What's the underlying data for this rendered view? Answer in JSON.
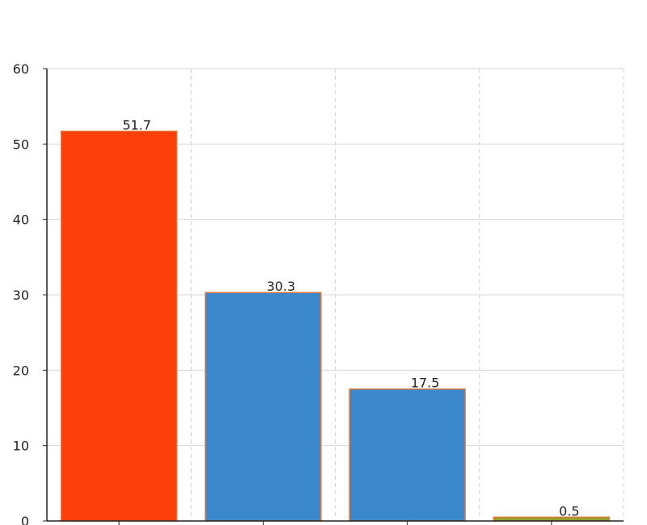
{
  "chart_data": {
    "type": "bar",
    "title": "",
    "xlabel": "",
    "ylabel": "",
    "categories": [
      "",
      "",
      "",
      ""
    ],
    "values": [
      51.7,
      30.3,
      17.5,
      0.5
    ],
    "data_labels": [
      "51.7",
      "30.3",
      "17.5",
      "0.5"
    ],
    "bar_colors": [
      "#ff3f0a",
      "#3c88cc",
      "#3c88cc",
      "#92a22c"
    ],
    "bar_border_color": "#e07a3a",
    "ylim": [
      0,
      60
    ],
    "yticks": [
      0,
      10,
      20,
      30,
      40,
      50,
      60
    ],
    "ytick_labels": [
      "0",
      "10",
      "20",
      "30",
      "40",
      "50",
      "60"
    ],
    "grid": true
  }
}
